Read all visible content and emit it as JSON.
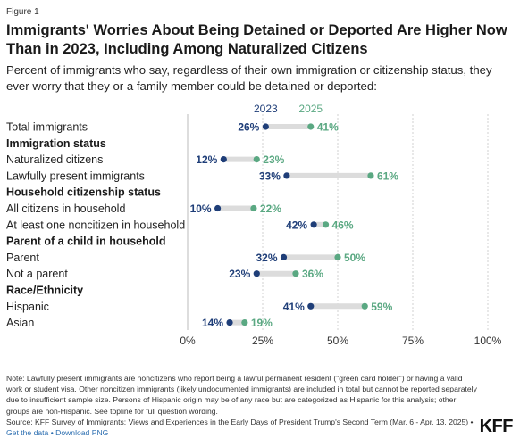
{
  "figure_label": "Figure 1",
  "title": "Immigrants' Worries About Being Detained or Deported Are Higher Now Than in 2023, Including Among Naturalized Citizens",
  "subtitle": "Percent of immigrants who say, regardless of their own immigration or citizenship status, they ever worry that they or a family member could be detained or deported:",
  "colors": {
    "series_2023": "#1f3e78",
    "series_2025": "#5aa882",
    "connector": "#dcdcdc",
    "grid": "#d0d0d0"
  },
  "chart_data": {
    "type": "dot",
    "series": [
      {
        "name": "2023"
      },
      {
        "name": "2025"
      }
    ],
    "xlim": [
      0,
      100
    ],
    "x_ticks": [
      "0%",
      "25%",
      "50%",
      "75%",
      "100%"
    ],
    "x_tick_values": [
      0,
      25,
      50,
      75,
      100
    ],
    "value_suffix": "%",
    "rows": [
      {
        "kind": "item",
        "label": "Total immigrants",
        "v2023": 26,
        "v2025": 41
      },
      {
        "kind": "group",
        "label": "Immigration status"
      },
      {
        "kind": "item",
        "label": "Naturalized citizens",
        "v2023": 12,
        "v2025": 23
      },
      {
        "kind": "item",
        "label": "Lawfully present immigrants",
        "v2023": 33,
        "v2025": 61
      },
      {
        "kind": "group",
        "label": "Household citizenship status"
      },
      {
        "kind": "item",
        "label": "All citizens in household",
        "v2023": 10,
        "v2025": 22
      },
      {
        "kind": "item",
        "label": "At least one noncitizen in household",
        "v2023": 42,
        "v2025": 46
      },
      {
        "kind": "group",
        "label": "Parent of a child in household"
      },
      {
        "kind": "item",
        "label": "Parent",
        "v2023": 32,
        "v2025": 50
      },
      {
        "kind": "item",
        "label": "Not a parent",
        "v2023": 23,
        "v2025": 36
      },
      {
        "kind": "group",
        "label": "Race/Ethnicity"
      },
      {
        "kind": "item",
        "label": "Hispanic",
        "v2023": 41,
        "v2025": 59
      },
      {
        "kind": "item",
        "label": "Asian",
        "v2023": 14,
        "v2025": 19
      }
    ]
  },
  "note": "Note: Lawfully present immigrants are noncitizens who report being a lawful permanent resident (\"green card holder\") or having a valid work or student visa. Other noncitizen immigrants (likely undocumented immigrants) are included in total but cannot be reported separately due to insufficient sample size. Persons of Hispanic origin may be of any race but are categorized as Hispanic for this analysis; other groups are non-Hispanic. See topline for full question wording.",
  "source": "Source: KFF Survey of Immigrants: Views and Experiences in the Early Days of President Trump's Second Term (Mar. 6 - Apr. 13, 2025) •",
  "link_data": "Get the data",
  "link_separator": "•",
  "link_png": "Download PNG",
  "logo": "KFF"
}
